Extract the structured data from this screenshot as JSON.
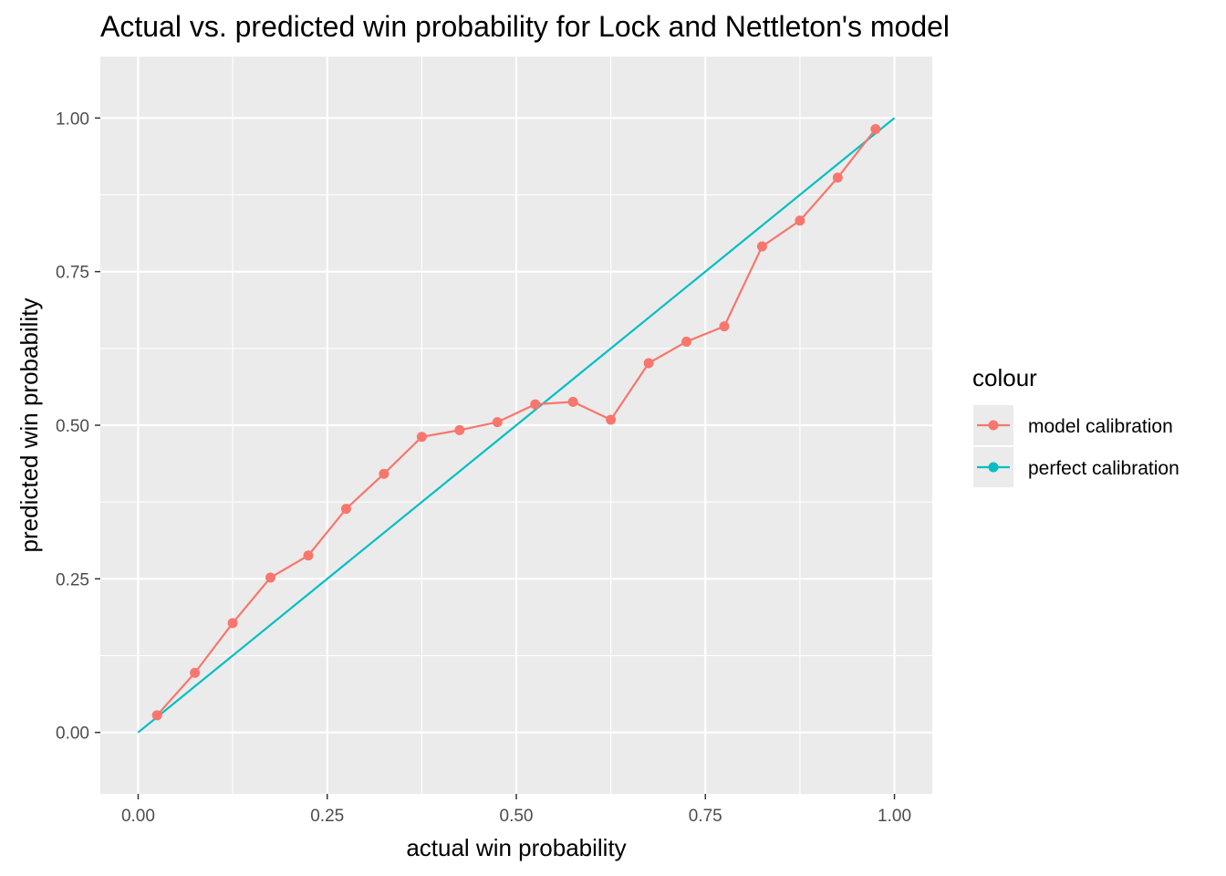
{
  "chart_data": {
    "type": "line",
    "title": "Actual vs. predicted win probability for Lock and Nettleton's model",
    "xlabel": "actual win probability",
    "ylabel": "predicted win probability",
    "xlim": [
      -0.05,
      1.05
    ],
    "ylim": [
      -0.1,
      1.1
    ],
    "x_ticks": [
      0.0,
      0.25,
      0.5,
      0.75,
      1.0
    ],
    "x_tick_labels": [
      "0.00",
      "0.25",
      "0.50",
      "0.75",
      "1.00"
    ],
    "y_ticks": [
      0.0,
      0.25,
      0.5,
      0.75,
      1.0
    ],
    "y_tick_labels": [
      "0.00",
      "0.25",
      "0.50",
      "0.75",
      "1.00"
    ],
    "grid": true,
    "legend": {
      "title": "colour",
      "position": "right"
    },
    "series": [
      {
        "name": "model calibration",
        "color": "#F8766D",
        "markers": true,
        "x": [
          0.025,
          0.075,
          0.125,
          0.175,
          0.225,
          0.275,
          0.325,
          0.375,
          0.425,
          0.475,
          0.525,
          0.575,
          0.625,
          0.675,
          0.725,
          0.775,
          0.825,
          0.875,
          0.925,
          0.975
        ],
        "y": [
          0.028,
          0.097,
          0.178,
          0.252,
          0.288,
          0.364,
          0.421,
          0.481,
          0.492,
          0.505,
          0.534,
          0.538,
          0.509,
          0.601,
          0.636,
          0.661,
          0.791,
          0.833,
          0.903,
          0.982
        ]
      },
      {
        "name": "perfect calibration",
        "color": "#00BFC4",
        "markers": false,
        "x": [
          0.0,
          1.0
        ],
        "y": [
          0.0,
          1.0
        ]
      }
    ]
  }
}
